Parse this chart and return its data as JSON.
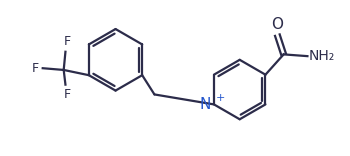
{
  "background_color": "#ffffff",
  "line_color": "#1a1a2e",
  "line_width": 1.6,
  "font_size_atoms": 9,
  "bond_color": "#2c2c4a",
  "N_color": "#2255cc",
  "O_color": "#1a1a2e",
  "figsize": [
    3.5,
    1.56
  ],
  "dpi": 100,
  "xlim": [
    0,
    10
  ],
  "ylim": [
    0,
    4.46
  ]
}
